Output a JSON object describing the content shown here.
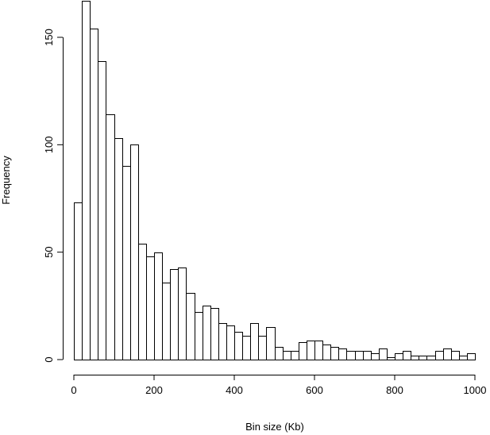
{
  "chart_data": {
    "type": "bar",
    "title": "",
    "xlabel": "Bin size (Kb)",
    "ylabel": "Frequency",
    "bin_width": 20,
    "bin_start": 0,
    "xlim": [
      0,
      1000
    ],
    "ylim": [
      0,
      167
    ],
    "x_ticks": [
      "0",
      "200",
      "400",
      "600",
      "800",
      "1000"
    ],
    "y_ticks": [
      "0",
      "50",
      "100",
      "150"
    ],
    "values": [
      73,
      167,
      154,
      139,
      114,
      103,
      90,
      100,
      54,
      48,
      50,
      36,
      42,
      43,
      31,
      22,
      25,
      24,
      17,
      16,
      13,
      11,
      17,
      11,
      15,
      6,
      4,
      4,
      8,
      9,
      9,
      7,
      6,
      5,
      4,
      4,
      4,
      3,
      5,
      1,
      3,
      4,
      2,
      2,
      2,
      4,
      5,
      4,
      2,
      3
    ],
    "grid": false,
    "legend": "none",
    "bar_fill": "#ffffff",
    "bar_stroke": "#000000"
  }
}
